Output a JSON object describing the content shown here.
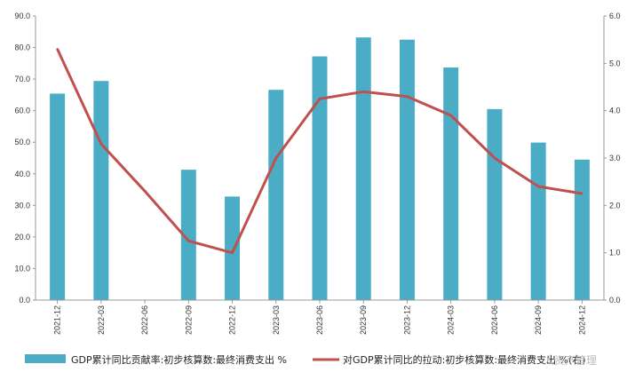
{
  "chart_data": {
    "type": "bar",
    "categories": [
      "2021-12",
      "2022-03",
      "2022-06",
      "2022-09",
      "2022-12",
      "2023-03",
      "2023-06",
      "2023-09",
      "2023-12",
      "2024-03",
      "2024-06",
      "2024-09",
      "2024-12"
    ],
    "series": [
      {
        "name": "GDP累计同比贡献率:初步核算数:最终消费支出 %",
        "type": "bar",
        "axis": "left",
        "color": "#4bacc6",
        "values": [
          65.4,
          69.4,
          null,
          41.3,
          32.8,
          66.6,
          77.2,
          83.2,
          82.5,
          73.7,
          60.5,
          49.9,
          44.5
        ]
      },
      {
        "name": "对GDP累计同比的拉动:初步核算数:最终消费支出 %(右)",
        "type": "line",
        "axis": "right",
        "color": "#c0504d",
        "values": [
          5.3,
          3.3,
          2.3,
          1.25,
          1.0,
          3.0,
          4.25,
          4.4,
          4.3,
          3.9,
          3.0,
          2.4,
          2.25
        ]
      }
    ],
    "y_left": {
      "min": 0,
      "max": 90,
      "step": 10,
      "ticks": [
        "0.0",
        "10.0",
        "20.0",
        "30.0",
        "40.0",
        "50.0",
        "60.0",
        "70.0",
        "80.0",
        "90.0"
      ]
    },
    "y_right": {
      "min": 0,
      "max": 6,
      "step": 1,
      "ticks": [
        "0.0",
        "1.0",
        "2.0",
        "3.0",
        "4.0",
        "5.0",
        "6.0"
      ]
    },
    "legend_position": "bottom",
    "grid": false
  },
  "watermark": "人资产管理"
}
